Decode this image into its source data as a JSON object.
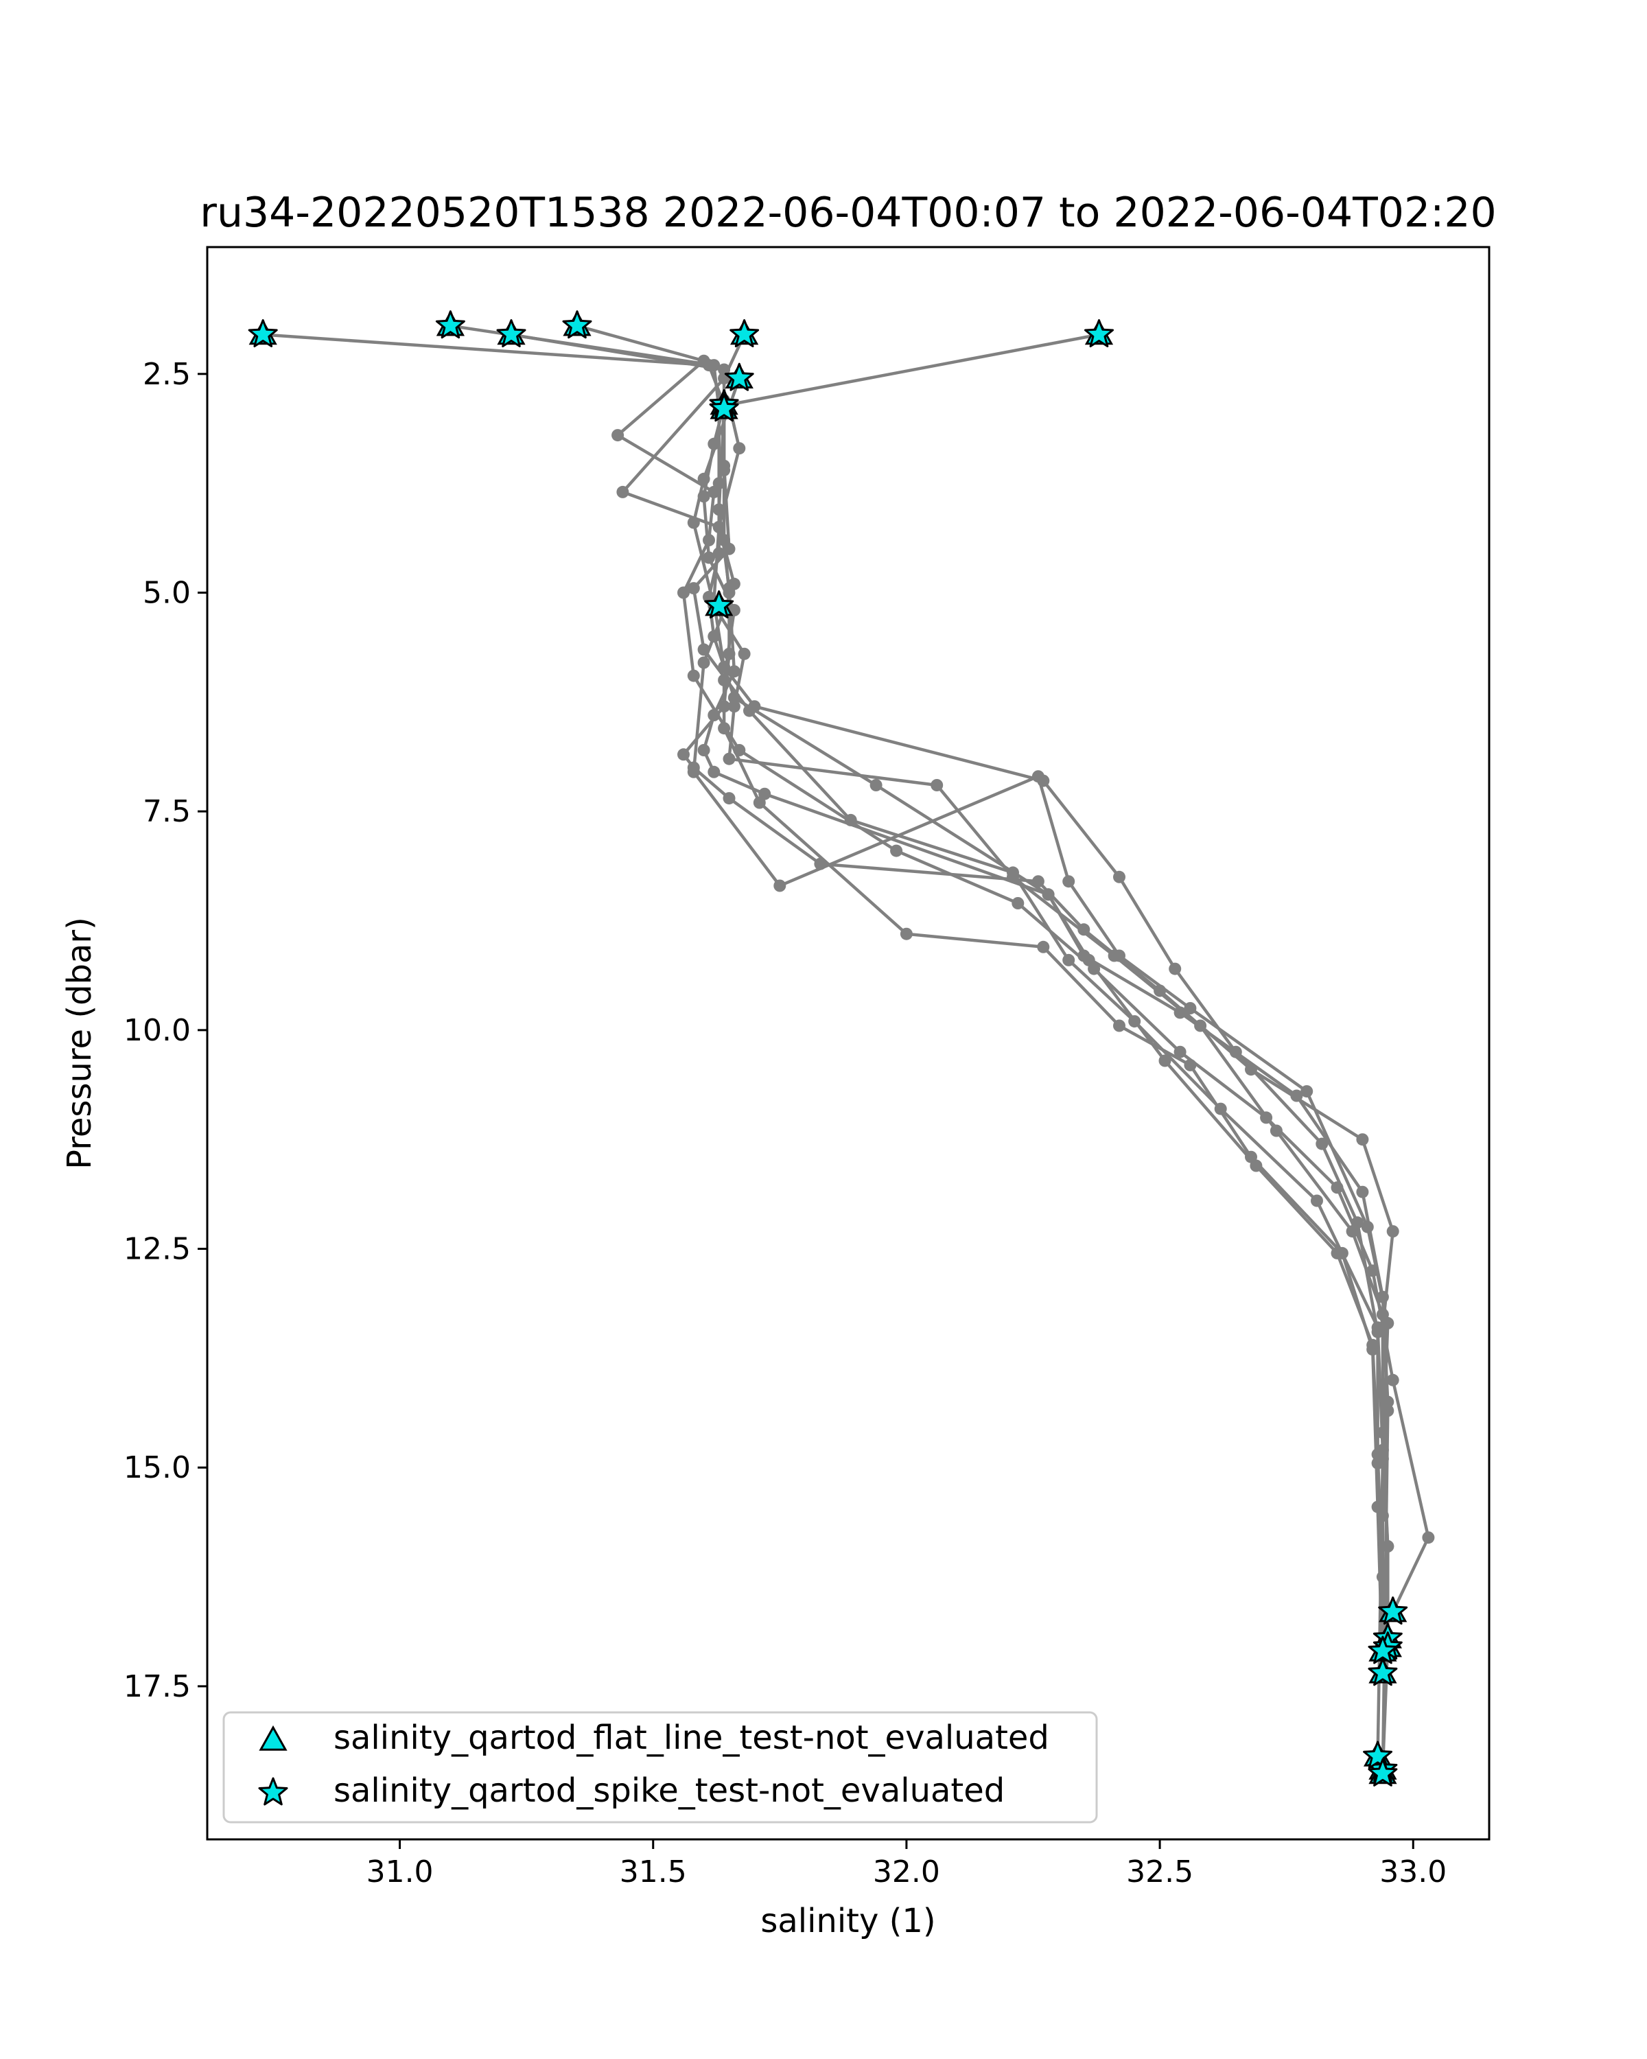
{
  "chart_data": {
    "type": "scatter",
    "title": "ru34-20220520T1538 2022-06-04T00:07 to 2022-06-04T02:20",
    "xlabel": "salinity (1)",
    "ylabel": "Pressure (dbar)",
    "xlim": [
      30.62,
      33.15
    ],
    "ylim": [
      19.25,
      1.05
    ],
    "y_inverted": true,
    "grid": false,
    "xticks": [
      31.0,
      31.5,
      32.0,
      32.5,
      33.0
    ],
    "yticks": [
      2.5,
      5.0,
      7.5,
      10.0,
      12.5,
      15.0,
      17.5
    ],
    "xtick_labels": [
      "31.0",
      "31.5",
      "32.0",
      "32.5",
      "33.0"
    ],
    "ytick_labels": [
      "2.5",
      "5.0",
      "7.5",
      "10.0",
      "12.5",
      "15.0",
      "17.5"
    ],
    "line_color": "#808080",
    "marker_color": "#00e5e5",
    "legend_position": "lower left",
    "profiles": [
      {
        "x": [
          30.73,
          31.61,
          31.64,
          31.64,
          31.64,
          31.65,
          31.65,
          31.64,
          31.56,
          31.58,
          31.65,
          31.83,
          32.26,
          32.35,
          32.5,
          32.68,
          32.9,
          32.96,
          32.94,
          32.94,
          32.95,
          32.95,
          32.94
        ],
        "y": [
          2.05,
          2.4,
          2.85,
          3.6,
          4.4,
          5.0,
          5.7,
          6.3,
          6.85,
          7.0,
          7.35,
          8.1,
          8.3,
          8.85,
          9.55,
          10.45,
          11.25,
          12.3,
          13.4,
          14.6,
          15.9,
          17.0,
          18.45
        ]
      },
      {
        "x": [
          31.1,
          31.62,
          31.63,
          31.63,
          31.63,
          31.61,
          31.62,
          31.66,
          31.94,
          32.28,
          32.35,
          32.54,
          32.77,
          32.9,
          32.94,
          32.95,
          32.94,
          32.94
        ],
        "y": [
          1.95,
          2.4,
          2.9,
          3.75,
          4.55,
          5.05,
          5.5,
          6.2,
          7.2,
          8.45,
          9.15,
          9.8,
          10.75,
          11.85,
          13.05,
          14.25,
          15.55,
          17.05
        ]
      },
      {
        "x": [
          31.22,
          31.64,
          31.64,
          31.64,
          31.65,
          31.58,
          31.6,
          31.69,
          31.89,
          32.21,
          32.32,
          32.45,
          32.62,
          32.81,
          32.93,
          32.94,
          32.95,
          32.95
        ],
        "y": [
          2.05,
          2.45,
          2.8,
          3.55,
          4.5,
          4.95,
          5.65,
          6.35,
          7.6,
          8.2,
          9.2,
          9.9,
          10.9,
          11.95,
          13.4,
          14.8,
          15.9,
          16.95
        ]
      },
      {
        "x": [
          31.35,
          31.6,
          31.43,
          31.62,
          31.61,
          31.56,
          31.58,
          31.67,
          31.98,
          32.22,
          32.37,
          32.54,
          32.71,
          32.85,
          32.92,
          32.96,
          33.03,
          32.96
        ],
        "y": [
          1.95,
          2.35,
          3.2,
          3.85,
          4.4,
          5.0,
          5.95,
          6.8,
          7.95,
          8.55,
          9.3,
          10.25,
          11.0,
          11.8,
          12.75,
          14.0,
          15.8,
          16.65
        ]
      },
      {
        "x": [
          31.68,
          31.64,
          31.44,
          31.63,
          31.66,
          31.6,
          31.58,
          31.75,
          32.26,
          32.32,
          32.42,
          32.56,
          32.79,
          32.91,
          32.95,
          32.94,
          32.93
        ],
        "y": [
          2.05,
          2.55,
          3.85,
          4.25,
          4.9,
          5.8,
          7.05,
          8.35,
          7.1,
          8.3,
          9.15,
          9.75,
          10.7,
          12.25,
          13.35,
          14.9,
          18.3
        ]
      },
      {
        "x": [
          31.67,
          31.6,
          31.58,
          31.62,
          31.68,
          31.66,
          31.65,
          32.06,
          32.21,
          32.41,
          32.58,
          32.73,
          32.88,
          32.94,
          32.95,
          32.94
        ],
        "y": [
          2.55,
          3.7,
          4.2,
          5.15,
          5.7,
          6.3,
          6.9,
          7.2,
          8.25,
          9.15,
          9.95,
          11.15,
          12.3,
          13.25,
          14.35,
          18.5
        ]
      },
      {
        "x": [
          31.64,
          31.62,
          31.6,
          31.61,
          31.66,
          31.64,
          31.64,
          31.71,
          32.0,
          32.27,
          32.42,
          32.56,
          32.68,
          32.86,
          32.92,
          32.93,
          32.94
        ],
        "y": [
          2.85,
          3.3,
          3.9,
          4.6,
          5.2,
          6.0,
          6.55,
          7.4,
          8.9,
          9.05,
          9.95,
          10.4,
          11.45,
          12.55,
          13.65,
          15.45,
          17.35
        ]
      },
      {
        "x": [
          32.38,
          31.65,
          31.67,
          31.63,
          31.62,
          31.64,
          31.7,
          32.27,
          32.42,
          32.53,
          32.65,
          32.82,
          32.89,
          32.93,
          32.93,
          32.94
        ],
        "y": [
          2.05,
          2.85,
          3.35,
          4.25,
          5.1,
          5.85,
          6.3,
          7.15,
          8.25,
          9.3,
          10.25,
          11.3,
          12.2,
          13.45,
          14.95,
          17.1
        ]
      },
      {
        "x": [
          31.64,
          31.63,
          31.65,
          31.66,
          31.62,
          31.6,
          31.62,
          31.72,
          32.28,
          32.36,
          32.51,
          32.69,
          32.85,
          32.92,
          32.93,
          32.94
        ],
        "y": [
          2.9,
          4.05,
          4.95,
          5.9,
          6.4,
          6.8,
          7.05,
          7.3,
          8.45,
          9.2,
          10.35,
          11.55,
          12.55,
          13.6,
          14.85,
          16.25
        ]
      }
    ],
    "series": [
      {
        "name": "salinity_qartod_flat_line_test-not_evaluated",
        "marker": "triangle",
        "x": [
          30.73,
          31.1,
          31.22,
          31.35,
          31.68,
          32.38,
          31.67,
          31.64,
          31.64,
          31.63,
          32.96,
          32.95,
          32.95,
          32.94,
          32.94,
          32.94,
          32.93,
          32.94
        ],
        "y": [
          2.05,
          1.95,
          2.05,
          1.95,
          2.05,
          2.05,
          2.55,
          2.85,
          2.9,
          5.15,
          16.65,
          16.95,
          17.05,
          17.1,
          17.35,
          18.45,
          18.3,
          18.5
        ]
      },
      {
        "name": "salinity_qartod_spike_test-not_evaluated",
        "marker": "star",
        "x": [
          30.73,
          31.1,
          31.22,
          31.35,
          31.68,
          32.38,
          31.67,
          31.64,
          31.64,
          31.63,
          32.96,
          32.95,
          32.95,
          32.94,
          32.94,
          32.94,
          32.93,
          32.94
        ],
        "y": [
          2.05,
          1.95,
          2.05,
          1.95,
          2.05,
          2.05,
          2.55,
          2.85,
          2.9,
          5.15,
          16.65,
          16.95,
          17.05,
          17.1,
          17.35,
          18.45,
          18.3,
          18.5
        ]
      }
    ]
  }
}
